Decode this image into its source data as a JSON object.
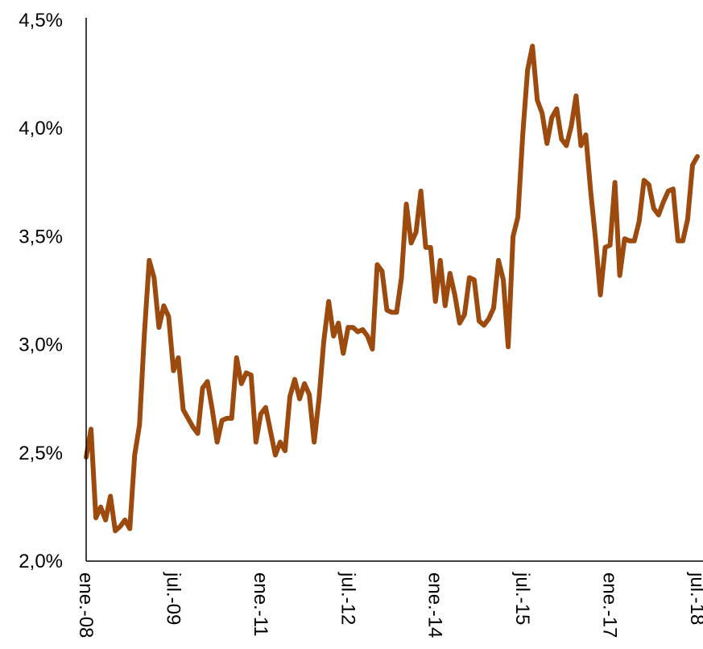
{
  "chart_data": {
    "type": "line",
    "title": "",
    "xlabel": "",
    "ylabel": "",
    "ylim": [
      2.0,
      4.5
    ],
    "y_ticks": [
      {
        "value": 2.0,
        "label": "2,0%"
      },
      {
        "value": 2.5,
        "label": "2,5%"
      },
      {
        "value": 3.0,
        "label": "3,0%"
      },
      {
        "value": 3.5,
        "label": "3,5%"
      },
      {
        "value": 4.0,
        "label": "4,0%"
      },
      {
        "value": 4.5,
        "label": "4,5%"
      }
    ],
    "x_ticks": [
      {
        "index": 0,
        "label": "ene.-08"
      },
      {
        "index": 18,
        "label": "jul.-09"
      },
      {
        "index": 36,
        "label": "ene.-11"
      },
      {
        "index": 54,
        "label": "jul.-12"
      },
      {
        "index": 72,
        "label": "ene.-14"
      },
      {
        "index": 90,
        "label": "jul.-15"
      },
      {
        "index": 108,
        "label": "ene.-17"
      },
      {
        "index": 126,
        "label": "jul.-18"
      }
    ],
    "grid": false,
    "legend": "none",
    "series": [
      {
        "color": "#9c4a0e",
        "values": [
          2.48,
          2.61,
          2.2,
          2.25,
          2.19,
          2.3,
          2.14,
          2.16,
          2.19,
          2.15,
          2.49,
          2.63,
          3.05,
          3.39,
          3.31,
          3.08,
          3.18,
          3.13,
          2.88,
          2.94,
          2.7,
          2.66,
          2.62,
          2.59,
          2.8,
          2.83,
          2.7,
          2.55,
          2.65,
          2.66,
          2.66,
          2.94,
          2.82,
          2.87,
          2.86,
          2.55,
          2.68,
          2.71,
          2.6,
          2.49,
          2.55,
          2.51,
          2.76,
          2.84,
          2.75,
          2.82,
          2.77,
          2.55,
          2.75,
          3.02,
          3.2,
          3.04,
          3.1,
          2.96,
          3.08,
          3.08,
          3.06,
          3.07,
          3.04,
          2.98,
          3.37,
          3.34,
          3.16,
          3.15,
          3.15,
          3.31,
          3.65,
          3.47,
          3.52,
          3.71,
          3.45,
          3.45,
          3.2,
          3.39,
          3.18,
          3.33,
          3.23,
          3.1,
          3.14,
          3.31,
          3.3,
          3.11,
          3.09,
          3.12,
          3.17,
          3.39,
          3.3,
          2.99,
          3.5,
          3.59,
          3.97,
          4.27,
          4.38,
          4.13,
          4.07,
          3.93,
          4.05,
          4.09,
          3.95,
          3.92,
          4.01,
          4.15,
          3.92,
          3.97,
          3.71,
          3.49,
          3.23,
          3.45,
          3.46,
          3.75,
          3.32,
          3.49,
          3.48,
          3.48,
          3.57,
          3.76,
          3.74,
          3.63,
          3.6,
          3.66,
          3.71,
          3.72,
          3.48,
          3.48,
          3.58,
          3.83,
          3.87
        ]
      }
    ]
  }
}
